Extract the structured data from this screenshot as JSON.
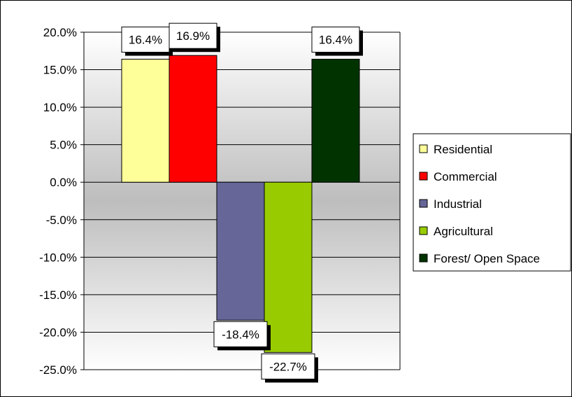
{
  "chart_data": {
    "type": "bar",
    "title": "",
    "xlabel": "",
    "ylabel": "",
    "ylim": [
      -25,
      20
    ],
    "y_ticks": [
      "20.0%",
      "15.0%",
      "10.0%",
      "5.0%",
      "0.0%",
      "-5.0%",
      "-10.0%",
      "-15.0%",
      "-20.0%",
      "-25.0%"
    ],
    "grid": true,
    "legend_position": "right",
    "series": [
      {
        "name": "Residential",
        "value": 16.4,
        "label": "16.4%",
        "color": "#FFFF99"
      },
      {
        "name": "Commercial",
        "value": 16.9,
        "label": "16.9%",
        "color": "#FF0000"
      },
      {
        "name": "Industrial",
        "value": -18.4,
        "label": "-18.4%",
        "color": "#666699"
      },
      {
        "name": "Agricultural",
        "value": -22.7,
        "label": "-22.7%",
        "color": "#99CC00"
      },
      {
        "name": "Forest/ Open Space",
        "value": 16.4,
        "label": "16.4%",
        "color": "#003300"
      }
    ]
  }
}
